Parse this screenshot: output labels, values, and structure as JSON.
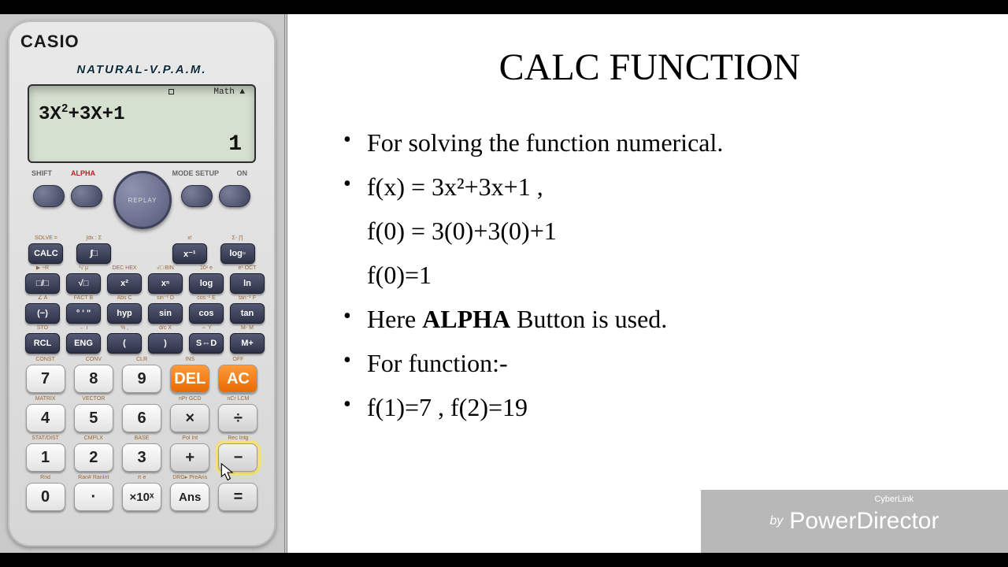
{
  "calculator": {
    "brand": "CASIO",
    "vpam": "NATURAL-V.P.A.M.",
    "screen": {
      "status_math": "Math ▲",
      "expression_html": "3X<sup>2</sup>+3X+1",
      "result": "1"
    },
    "topLabels": {
      "shift": "SHIFT",
      "alpha": "ALPHA",
      "mode": "MODE SETUP",
      "on": "ON"
    },
    "replay": "REPLAY",
    "funcRows": [
      [
        {
          "lab": "SOLVE =",
          "txt": "CALC"
        },
        {
          "lab": "∫dx : Σ",
          "txt": "∫□"
        },
        {
          "lab": "",
          "txt": ""
        },
        {
          "lab": "x!",
          "txt": "x⁻¹"
        },
        {
          "lab": "Σ-  ∏",
          "txt": "log▫"
        }
      ],
      [
        {
          "lab": "▶ ÷R",
          "txt": "□/□"
        },
        {
          "lab": "³√  μ",
          "txt": "√□"
        },
        {
          "lab": "DEC  HEX",
          "txt": "x²"
        },
        {
          "lab": "√□  BIN",
          "txt": "xⁿ"
        },
        {
          "lab": "10ˣ  e",
          "txt": "log"
        },
        {
          "lab": "eˣ  OCT",
          "txt": "ln"
        }
      ],
      [
        {
          "lab": "∠  A",
          "txt": "(−)"
        },
        {
          "lab": "FACT B",
          "txt": "° ' \""
        },
        {
          "lab": "Abs C",
          "txt": "hyp"
        },
        {
          "lab": "sin⁻¹ D",
          "txt": "sin"
        },
        {
          "lab": "cos⁻¹ E",
          "txt": "cos"
        },
        {
          "lab": "tan⁻¹ F",
          "txt": "tan"
        }
      ],
      [
        {
          "lab": "STO",
          "txt": "RCL"
        },
        {
          "lab": "← i",
          "txt": "ENG"
        },
        {
          "lab": "% ,",
          "txt": "("
        },
        {
          "lab": "d/c X",
          "txt": ")"
        },
        {
          "lab": "⇔ Y",
          "txt": "S⇔D"
        },
        {
          "lab": "M- M",
          "txt": "M+"
        }
      ]
    ],
    "numRows": [
      [
        {
          "lab": "CONST",
          "txt": "7",
          "cls": ""
        },
        {
          "lab": "CONV",
          "txt": "8",
          "cls": ""
        },
        {
          "lab": "CLR",
          "txt": "9",
          "cls": ""
        },
        {
          "lab": "INS",
          "txt": "DEL",
          "cls": "del"
        },
        {
          "lab": "OFF",
          "txt": "AC",
          "cls": "ac"
        }
      ],
      [
        {
          "lab": "MATRIX",
          "txt": "4",
          "cls": ""
        },
        {
          "lab": "VECTOR",
          "txt": "5",
          "cls": ""
        },
        {
          "lab": "",
          "txt": "6",
          "cls": ""
        },
        {
          "lab": "nPr GCD",
          "txt": "×",
          "cls": "op"
        },
        {
          "lab": "nCr LCM",
          "txt": "÷",
          "cls": "op"
        }
      ],
      [
        {
          "lab": "STAT/DIST",
          "txt": "1",
          "cls": ""
        },
        {
          "lab": "CMPLX",
          "txt": "2",
          "cls": ""
        },
        {
          "lab": "BASE",
          "txt": "3",
          "cls": ""
        },
        {
          "lab": "Pol Int",
          "txt": "+",
          "cls": "op"
        },
        {
          "lab": "Rec Intg",
          "txt": "−",
          "cls": "op highlight"
        }
      ],
      [
        {
          "lab": "Rnd",
          "txt": "0",
          "cls": ""
        },
        {
          "lab": "Ran# RanInt",
          "txt": "·",
          "cls": ""
        },
        {
          "lab": "π e",
          "txt": "×10ˣ",
          "cls": "small"
        },
        {
          "lab": "DRG▸ PreAns",
          "txt": "Ans",
          "cls": "small"
        },
        {
          "lab": "",
          "txt": "=",
          "cls": "op"
        }
      ]
    ]
  },
  "slide": {
    "title": "CALC FUNCTION",
    "bullets": [
      "For solving the function numerical.",
      "f(x) = 3x²+3x+1 ,",
      "Here <b>ALPHA</b> Button is used.",
      "For function:-",
      "f(1)=7 , f(2)=19"
    ],
    "cont": [
      "f(0) = 3(0)+3(0)+1",
      "f(0)=1"
    ]
  },
  "watermark": {
    "by": "by",
    "cyberlink": "CyberLink",
    "product": "PowerDirector"
  },
  "colors": {
    "orange": "#e76a00",
    "calc_body": "#dedede",
    "screen_bg": "#d6e0d0",
    "watermark_bg": "#b8b8b8"
  }
}
